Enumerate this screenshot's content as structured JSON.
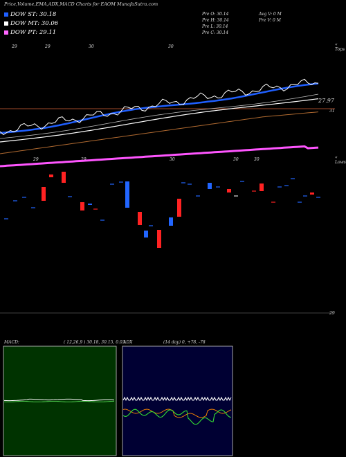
{
  "header": {
    "title": "Price,Volume,EMA,ADX,MACD Charts for EAOM MunafaSutra.com",
    "legend": [
      {
        "label": "DOW ST: 30.18",
        "color": "#1f5fff"
      },
      {
        "label": "DOW MT: 30.06",
        "color": "#ffffff"
      },
      {
        "label": "DOW PT: 29.11",
        "color": "#ff66ff"
      }
    ],
    "ohlc": {
      "open": "Pre  O: 30.14",
      "high": "Pre  H: 30.14",
      "low": "Pre  L: 30.14",
      "close": "Pre  C: 30.14",
      "avg_vol": "Avg V: 0  M",
      "pre_vol": "Pre  V: 0  M"
    }
  },
  "price_panel": {
    "top_tag": "« Tops",
    "date_ticks": [
      "29",
      "29",
      "30",
      "30"
    ],
    "level_label": "27.97",
    "side_label": "31"
  },
  "candle_panel": {
    "tag": "« Lows",
    "date_ticks": [
      "29",
      "29",
      "30",
      "30",
      "30"
    ],
    "bottom_label": "29"
  },
  "macd": {
    "label": "MACD:",
    "params": "( 12,26,9 ) 30.18, 30.15, 0.03"
  },
  "adx": {
    "label": "ADX",
    "params": "(14  day) 0, +78, -78"
  },
  "chart_data": {
    "type": "line",
    "series": [
      {
        "name": "DOW ST",
        "values": [
          30.18
        ]
      },
      {
        "name": "DOW MT",
        "values": [
          30.06
        ]
      },
      {
        "name": "DOW PT",
        "values": [
          29.11
        ]
      }
    ],
    "levels": [
      27.97
    ],
    "pre_close": 30.14,
    "macd": [
      30.18,
      30.15,
      0.03
    ],
    "adx": [
      0,
      78,
      -78
    ]
  },
  "colors": {
    "short": "#1f5fff",
    "mid": "#ffffff",
    "long": "#ff66ff",
    "up": "#ff2222",
    "down": "#2266ff",
    "macd_bg": "#003300",
    "adx_bg": "#000033"
  }
}
